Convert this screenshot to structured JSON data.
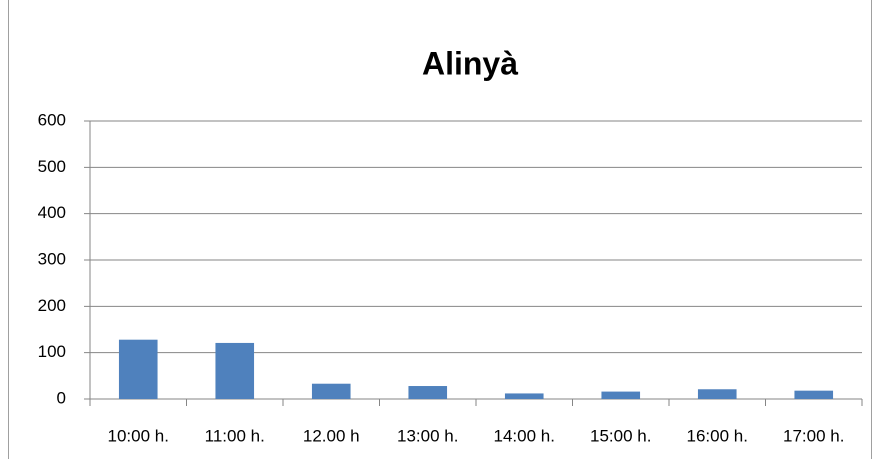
{
  "chart_data": {
    "type": "bar",
    "title": "Alinyà",
    "categories": [
      "10:00 h.",
      "11:00 h.",
      "12.00 h",
      "13:00 h.",
      "14:00 h.",
      "15:00 h.",
      "16:00 h.",
      "17:00 h."
    ],
    "values": [
      128,
      121,
      33,
      28,
      12,
      16,
      21,
      18
    ],
    "color": "#4f81bd",
    "ylim": [
      0,
      600
    ],
    "yticks": [
      0,
      100,
      200,
      300,
      400,
      500,
      600
    ],
    "grid": true
  }
}
